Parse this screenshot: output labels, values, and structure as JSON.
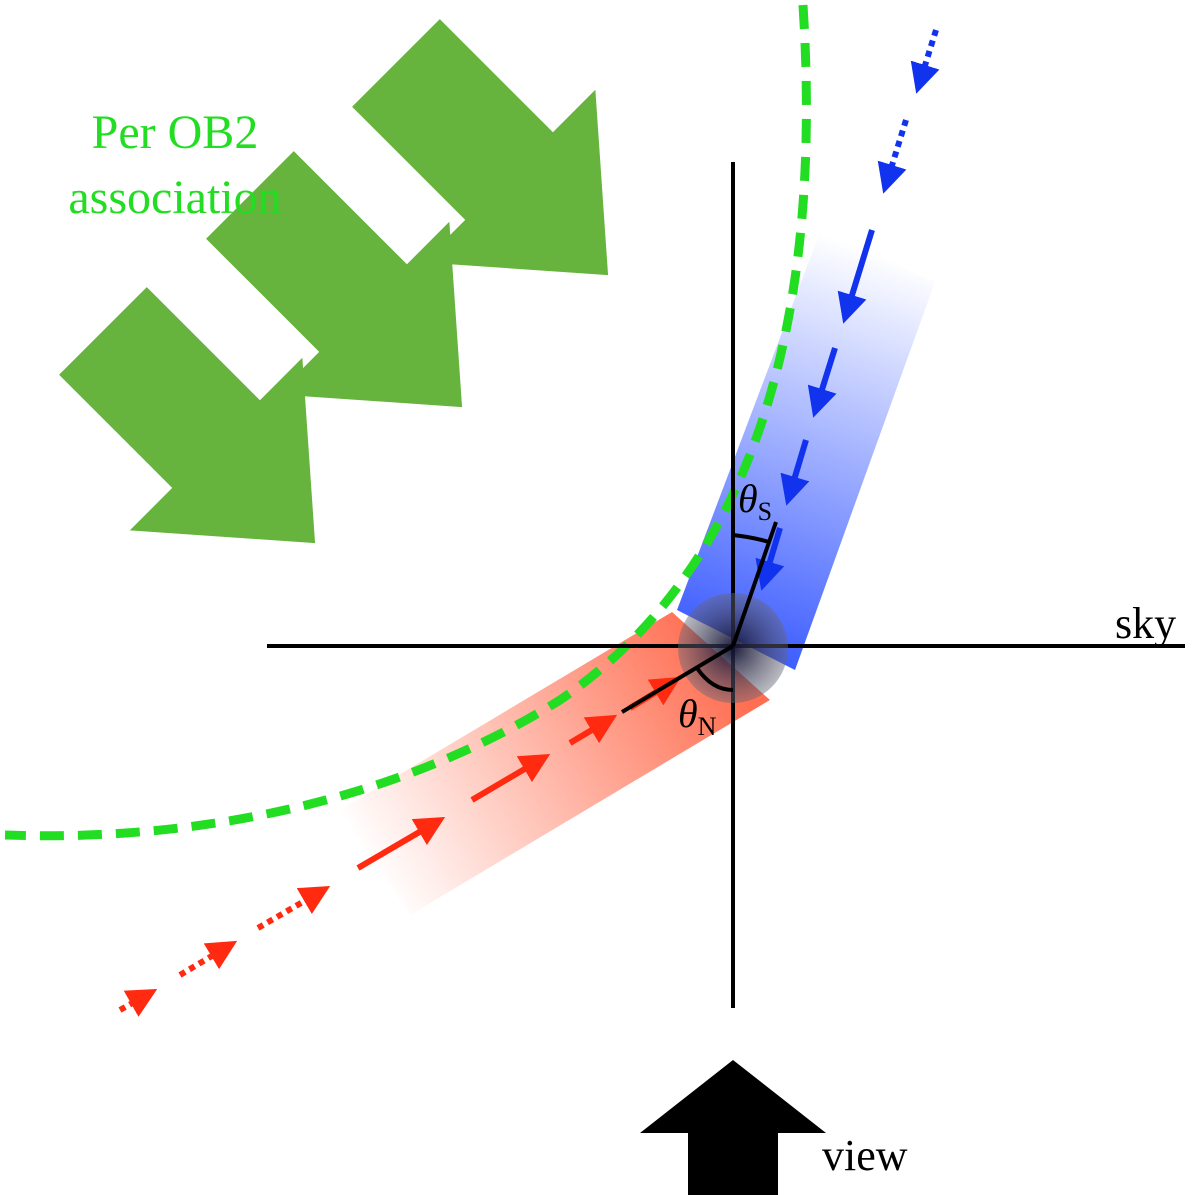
{
  "labels": {
    "association_line1": "Per OB2",
    "association_line2": "association",
    "sky": "sky",
    "view": "view",
    "theta_s": {
      "symbol": "θ",
      "subscript": "S"
    },
    "theta_n": {
      "symbol": "θ",
      "subscript": "N"
    }
  }
}
